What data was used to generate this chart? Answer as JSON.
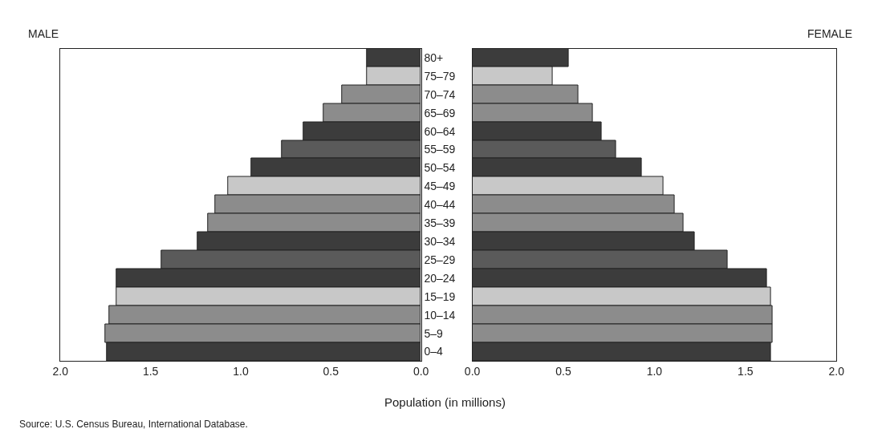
{
  "chart_data": [
    {
      "type": "bar",
      "orientation": "horizontal",
      "title": "MALE",
      "xlabel": "Population (in millions)",
      "annotations": [
        "Source: U.S. Census Bureau, International Database."
      ],
      "categories": [
        "80+",
        "75–79",
        "70–74",
        "65–69",
        "60–64",
        "55–59",
        "50–54",
        "45–49",
        "40–44",
        "35–39",
        "30–34",
        "25–29",
        "20–24",
        "15–19",
        "10–14",
        "5–9",
        "0–4"
      ],
      "series": [
        {
          "values": [
            0.3,
            0.3,
            0.44,
            0.54,
            0.65,
            0.77,
            0.94,
            1.07,
            1.14,
            1.18,
            1.24,
            1.44,
            1.69,
            1.69,
            1.73,
            1.75,
            1.74
          ],
          "colors": [
            "#3c3c3c",
            "#c8c8c8",
            "#8c8c8c",
            "#8c8c8c",
            "#3c3c3c",
            "#5a5a5a",
            "#3c3c3c",
            "#c8c8c8",
            "#8c8c8c",
            "#8c8c8c",
            "#3c3c3c",
            "#5a5a5a",
            "#3c3c3c",
            "#c8c8c8",
            "#8c8c8c",
            "#8c8c8c",
            "#3c3c3c"
          ]
        }
      ],
      "xlim": [
        2,
        0
      ],
      "xticks": [
        {
          "value": 2,
          "label": "2.0"
        },
        {
          "value": 1.5,
          "label": "1.5"
        },
        {
          "value": 1,
          "label": "1.0"
        },
        {
          "value": 0.5,
          "label": "0.5"
        },
        {
          "value": 0,
          "label": "0.0"
        }
      ]
    },
    {
      "type": "bar",
      "orientation": "horizontal",
      "title": "FEMALE",
      "tick_labels": "x",
      "categories": [
        null,
        null,
        null,
        null,
        null,
        null,
        null,
        null,
        null,
        null,
        null,
        null,
        null,
        null,
        null,
        null,
        null
      ],
      "series": [
        {
          "values": [
            0.53,
            0.44,
            0.58,
            0.66,
            0.71,
            0.79,
            0.93,
            1.05,
            1.11,
            1.16,
            1.22,
            1.4,
            1.62,
            1.64,
            1.65,
            1.65,
            1.64
          ],
          "colors": [
            "#3c3c3c",
            "#c8c8c8",
            "#8c8c8c",
            "#8c8c8c",
            "#3c3c3c",
            "#5a5a5a",
            "#3c3c3c",
            "#c8c8c8",
            "#8c8c8c",
            "#8c8c8c",
            "#3c3c3c",
            "#5a5a5a",
            "#3c3c3c",
            "#c8c8c8",
            "#8c8c8c",
            "#8c8c8c",
            "#3c3c3c"
          ]
        }
      ],
      "xlim": [
        0,
        2
      ],
      "xticks": [
        {
          "value": 0,
          "label": "0.0"
        },
        {
          "value": 0.5,
          "label": "0.5"
        },
        {
          "value": 1,
          "label": "1.0"
        },
        {
          "value": 1.5,
          "label": "1.5"
        },
        {
          "value": 2,
          "label": "2.0"
        }
      ]
    }
  ]
}
